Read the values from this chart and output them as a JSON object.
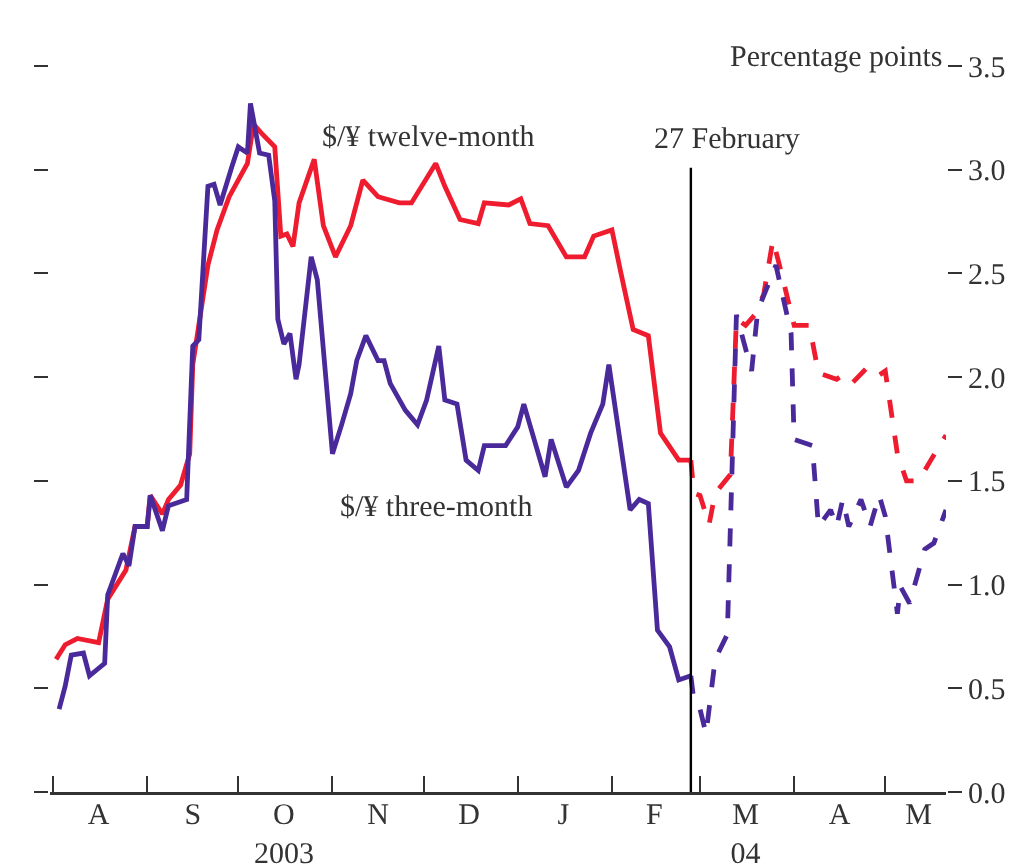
{
  "chart_data": {
    "type": "line",
    "ylabel": "Percentage points",
    "xlim": [
      "2003-07-31",
      "2004-05-21"
    ],
    "xticks": [
      {
        "value": "2003-08-01",
        "label": null
      },
      {
        "value": "2003-09-01",
        "label": null
      },
      {
        "value": "2003-10-01",
        "label": null
      },
      {
        "value": "2003-11-01",
        "label": null
      },
      {
        "value": "2003-12-01",
        "label": null
      },
      {
        "value": "2004-01-01",
        "label": null
      },
      {
        "value": "2004-02-01",
        "label": null
      },
      {
        "value": "2004-03-01",
        "label": null
      },
      {
        "value": "2004-04-01",
        "label": null
      },
      {
        "value": "2004-05-01",
        "label": null
      },
      {
        "value": "2003-08-16",
        "label": "A"
      },
      {
        "value": "2003-09-16",
        "label": "S"
      },
      {
        "value": "2003-10-16",
        "label": "O\n2003"
      },
      {
        "value": "2003-11-16",
        "label": "N"
      },
      {
        "value": "2003-12-16",
        "label": "D"
      },
      {
        "value": "2004-01-16",
        "label": "J"
      },
      {
        "value": "2004-02-15",
        "label": "F"
      },
      {
        "value": "2004-03-16",
        "label": "M\n04"
      },
      {
        "value": "2004-04-16",
        "label": "A"
      },
      {
        "value": "2004-05-12",
        "label": "M"
      }
    ],
    "ylim": [
      0,
      3.5
    ],
    "yticks": [
      {
        "value": 0,
        "label": "0.0"
      },
      {
        "value": 0.5,
        "label": "0.5"
      },
      {
        "value": 1,
        "label": "1.0"
      },
      {
        "value": 1.5,
        "label": "1.5"
      },
      {
        "value": 2,
        "label": "2.0"
      },
      {
        "value": 2.5,
        "label": "2.5"
      },
      {
        "value": 3,
        "label": "3.0"
      },
      {
        "value": 3.5,
        "label": "3.5"
      }
    ],
    "grid": false,
    "legend": false,
    "ref_lines": [
      {
        "axis": "x",
        "value": "2004-02-27",
        "label": "27 February",
        "color": "#000000"
      }
    ],
    "series": [
      {
        "name": "$/¥ twelve-month",
        "color": "#ee1c2e",
        "line_style": "solid",
        "x": [
          "2003-08-02",
          "2003-08-05",
          "2003-08-09",
          "2003-08-16",
          "2003-08-19",
          "2003-08-25",
          "2003-08-28",
          "2003-09-01",
          "2003-09-02",
          "2003-09-06",
          "2003-09-08",
          "2003-09-12",
          "2003-09-15",
          "2003-09-16",
          "2003-09-21",
          "2003-09-24",
          "2003-09-28",
          "2003-10-04",
          "2003-10-06",
          "2003-10-09",
          "2003-10-13",
          "2003-10-15",
          "2003-10-17",
          "2003-10-19",
          "2003-10-21",
          "2003-10-26",
          "2003-10-29",
          "2003-11-02",
          "2003-11-07",
          "2003-11-11",
          "2003-11-16",
          "2003-11-23",
          "2003-11-27",
          "2003-12-05",
          "2003-12-08",
          "2003-12-13",
          "2003-12-19",
          "2003-12-21",
          "2003-12-29",
          "2004-01-02",
          "2004-01-05",
          "2004-01-11",
          "2004-01-17",
          "2004-01-23",
          "2004-01-26",
          "2004-02-01",
          "2004-02-04",
          "2004-02-08",
          "2004-02-13",
          "2004-02-17",
          "2004-02-23",
          "2004-02-27"
        ],
        "values": [
          0.64,
          0.71,
          0.74,
          0.72,
          0.93,
          1.07,
          1.28,
          1.28,
          1.43,
          1.34,
          1.41,
          1.48,
          1.63,
          2.06,
          2.54,
          2.71,
          2.87,
          3.03,
          3.22,
          3.17,
          3.11,
          2.68,
          2.69,
          2.63,
          2.84,
          3.05,
          2.73,
          2.58,
          2.73,
          2.95,
          2.87,
          2.84,
          2.84,
          3.03,
          2.92,
          2.76,
          2.74,
          2.84,
          2.83,
          2.86,
          2.74,
          2.73,
          2.58,
          2.58,
          2.68,
          2.71,
          2.5,
          2.23,
          2.2,
          1.73,
          1.6,
          1.6
        ]
      },
      {
        "name": "$/¥ three-month",
        "color": "#4a2a9a",
        "line_style": "solid",
        "x": [
          "2003-08-03",
          "2003-08-05",
          "2003-08-07",
          "2003-08-11",
          "2003-08-13",
          "2003-08-18",
          "2003-08-19",
          "2003-08-24",
          "2003-08-26",
          "2003-08-28",
          "2003-09-01",
          "2003-09-02",
          "2003-09-06",
          "2003-09-08",
          "2003-09-14",
          "2003-09-16",
          "2003-09-18",
          "2003-09-21",
          "2003-09-23",
          "2003-09-25",
          "2003-09-29",
          "2003-10-01",
          "2003-10-04",
          "2003-10-05",
          "2003-10-08",
          "2003-10-11",
          "2003-10-13",
          "2003-10-14",
          "2003-10-16",
          "2003-10-18",
          "2003-10-20",
          "2003-10-21",
          "2003-10-25",
          "2003-10-27",
          "2003-11-01",
          "2003-11-04",
          "2003-11-07",
          "2003-11-09",
          "2003-11-12",
          "2003-11-16",
          "2003-11-18",
          "2003-11-20",
          "2003-11-25",
          "2003-11-29",
          "2003-12-02",
          "2003-12-06",
          "2003-12-08",
          "2003-12-12",
          "2003-12-15",
          "2003-12-19",
          "2003-12-21",
          "2003-12-28",
          "2004-01-01",
          "2004-01-03",
          "2004-01-07",
          "2004-01-10",
          "2004-01-12",
          "2004-01-17",
          "2004-01-21",
          "2004-01-25",
          "2004-01-29",
          "2004-01-31",
          "2004-02-03",
          "2004-02-07",
          "2004-02-10",
          "2004-02-13",
          "2004-02-16",
          "2004-02-20",
          "2004-02-23",
          "2004-02-27"
        ],
        "values": [
          0.4,
          0.51,
          0.66,
          0.67,
          0.56,
          0.62,
          0.95,
          1.15,
          1.09,
          1.28,
          1.28,
          1.43,
          1.26,
          1.38,
          1.41,
          2.15,
          2.18,
          2.92,
          2.93,
          2.83,
          3.02,
          3.11,
          3.08,
          3.32,
          3.08,
          3.07,
          2.85,
          2.28,
          2.16,
          2.21,
          1.99,
          2.06,
          2.58,
          2.47,
          1.63,
          1.77,
          1.92,
          2.08,
          2.2,
          2.08,
          2.08,
          1.97,
          1.84,
          1.77,
          1.89,
          2.15,
          1.89,
          1.87,
          1.6,
          1.55,
          1.67,
          1.67,
          1.76,
          1.87,
          1.67,
          1.52,
          1.7,
          1.47,
          1.55,
          1.73,
          1.87,
          2.06,
          1.76,
          1.36,
          1.41,
          1.39,
          0.78,
          0.7,
          0.54,
          0.56
        ]
      },
      {
        "color": "#ee1c2e",
        "line_style": "dashed",
        "x": [
          "2004-02-27",
          "2004-02-28",
          "2004-03-01",
          "2004-03-04",
          "2004-03-06",
          "2004-03-11",
          "2004-03-13",
          "2004-03-16",
          "2004-03-19",
          "2004-03-22",
          "2004-03-25",
          "2004-03-27",
          "2004-04-01",
          "2004-04-06",
          "2004-04-09",
          "2004-04-15",
          "2004-04-17",
          "2004-04-20",
          "2004-04-24",
          "2004-04-27",
          "2004-05-01",
          "2004-05-05",
          "2004-05-08",
          "2004-05-12",
          "2004-05-16",
          "2004-05-21"
        ],
        "values": [
          1.6,
          1.44,
          1.43,
          1.29,
          1.44,
          1.53,
          2.28,
          2.25,
          2.3,
          2.4,
          2.66,
          2.55,
          2.25,
          2.25,
          2.02,
          1.99,
          2.01,
          1.97,
          2.03,
          1.99,
          2.03,
          1.63,
          1.5,
          1.5,
          1.6,
          1.72
        ]
      },
      {
        "color": "#4a2a9a",
        "line_style": "dashed",
        "x": [
          "2004-02-27",
          "2004-02-28",
          "2004-03-01",
          "2004-03-03",
          "2004-03-06",
          "2004-03-10",
          "2004-03-13",
          "2004-03-18",
          "2004-03-20",
          "2004-03-26",
          "2004-03-31",
          "2004-04-01",
          "2004-04-07",
          "2004-04-09",
          "2004-04-13",
          "2004-04-15",
          "2004-04-17",
          "2004-04-19",
          "2004-04-23",
          "2004-04-26",
          "2004-04-29",
          "2004-05-01",
          "2004-05-05",
          "2004-05-06",
          "2004-05-09",
          "2004-05-14",
          "2004-05-17",
          "2004-05-21"
        ],
        "values": [
          0.56,
          0.44,
          0.4,
          0.28,
          0.64,
          0.76,
          2.3,
          2.03,
          2.32,
          2.54,
          2.21,
          1.7,
          1.67,
          1.28,
          1.36,
          1.28,
          1.41,
          1.28,
          1.41,
          1.28,
          1.43,
          1.33,
          0.86,
          0.99,
          0.91,
          1.17,
          1.2,
          1.36
        ]
      }
    ]
  }
}
